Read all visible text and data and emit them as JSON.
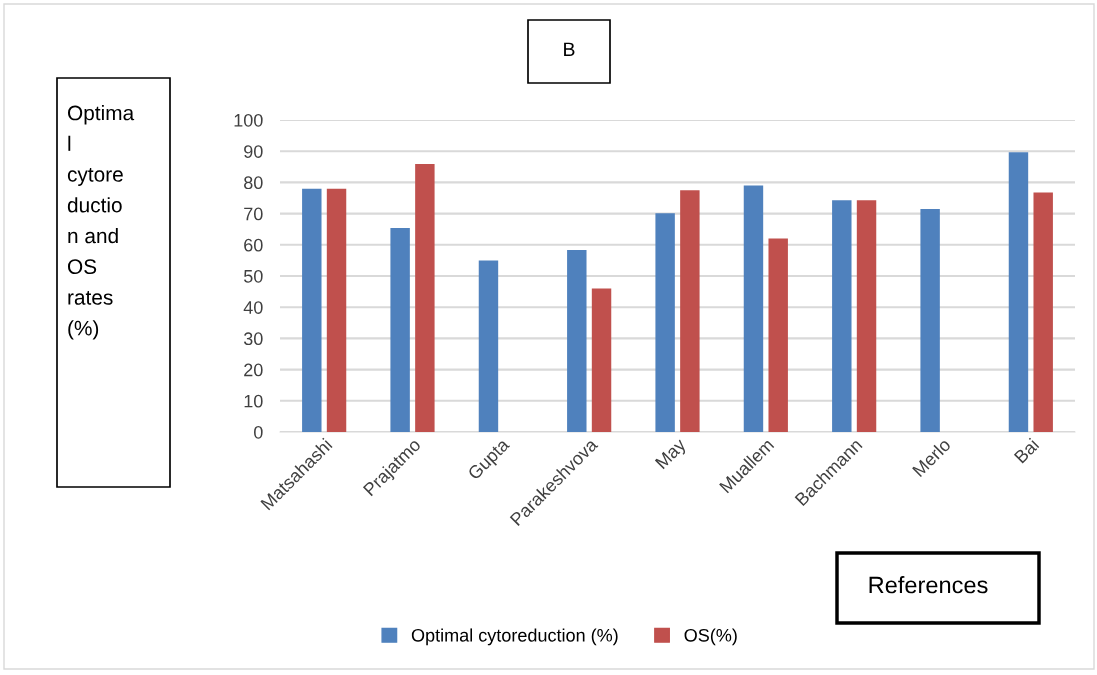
{
  "chart_data": {
    "type": "bar",
    "title": "B",
    "ylabel": "Optima\nl\ncytore\nductio\nn and\nOS\nrates\n(%)",
    "xlabel": "References",
    "categories": [
      "Matsahashi",
      "Prajatmo",
      "Gupta",
      "Parakeshvova",
      "May",
      "Muallem",
      "Bachmann",
      "Merlo",
      "Bai"
    ],
    "series": [
      {
        "name": "Optimal cytoreduction (%)",
        "color": "#4f81bd",
        "values": [
          78,
          65.4,
          55,
          58.3,
          70.1,
          79,
          74.3,
          71.5,
          89.7
        ]
      },
      {
        "name": "OS(%)",
        "color": "#c0504d",
        "values": [
          78,
          85.9,
          null,
          46,
          77.5,
          62,
          74.3,
          null,
          76.8
        ]
      }
    ],
    "ylim": [
      0,
      100
    ],
    "yticks": [
      0,
      10,
      20,
      30,
      40,
      50,
      60,
      70,
      80,
      90,
      100
    ],
    "grid": "y",
    "legend": "bottom"
  }
}
